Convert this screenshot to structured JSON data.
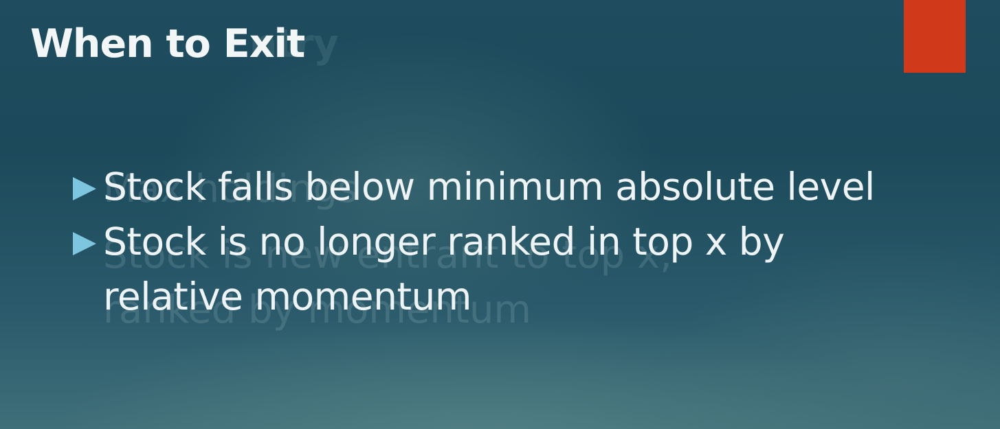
{
  "slide": {
    "title": "When to Exit",
    "bullets": [
      {
        "text": "Stock falls below minimum absolute level"
      },
      {
        "text": "Stock is no longer ranked in top x by relative momentum"
      }
    ],
    "ghost": {
      "title": "When to Entry",
      "line1": "Max holdings",
      "line2": "Stock is new entrant to top x,",
      "line3": "ranked by momentum"
    },
    "colors": {
      "accent": "#d0391a",
      "bullet": "#7ec6e0",
      "text": "#eef4f5",
      "background": "#1f4c5e"
    }
  }
}
